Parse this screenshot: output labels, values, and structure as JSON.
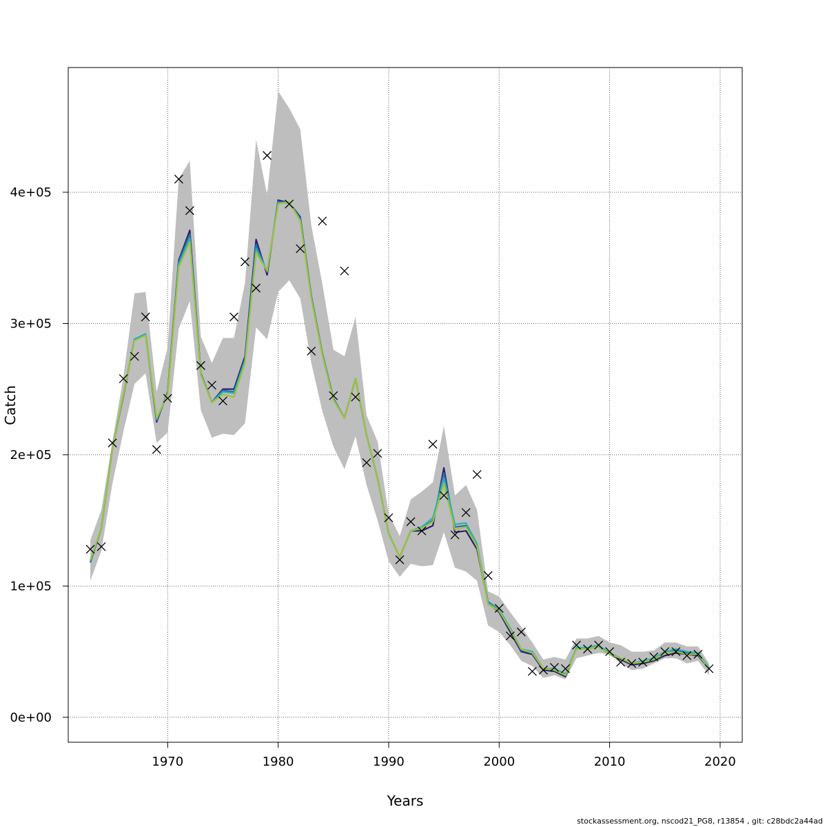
{
  "chart_data": {
    "type": "line",
    "xlabel": "Years",
    "ylabel": "Catch",
    "xlim": [
      1961,
      2022
    ],
    "ylim": [
      -19000,
      495000
    ],
    "x_ticks": [
      1970,
      1980,
      1990,
      2000,
      2010,
      2020
    ],
    "x_tick_labels": [
      "1970",
      "1980",
      "1990",
      "2000",
      "2010",
      "2020"
    ],
    "y_ticks": [
      0,
      100000,
      200000,
      300000,
      400000
    ],
    "y_tick_labels": [
      "0e+00",
      "1e+05",
      "2e+05",
      "3e+05",
      "4e+05"
    ],
    "grid": true,
    "x": [
      1963,
      1964,
      1965,
      1966,
      1967,
      1968,
      1969,
      1970,
      1971,
      1972,
      1973,
      1974,
      1975,
      1976,
      1977,
      1978,
      1979,
      1980,
      1981,
      1982,
      1983,
      1984,
      1985,
      1986,
      1987,
      1988,
      1989,
      1990,
      1991,
      1992,
      1993,
      1994,
      1995,
      1996,
      1997,
      1998,
      1999,
      2000,
      2001,
      2002,
      2003,
      2004,
      2005,
      2006,
      2007,
      2008,
      2009,
      2010,
      2011,
      2012,
      2013,
      2014,
      2015,
      2016,
      2017,
      2018,
      2019
    ],
    "band_upper": [
      135000,
      158000,
      210000,
      260000,
      323000,
      324000,
      248000,
      282000,
      410000,
      424000,
      290000,
      270000,
      289000,
      289000,
      331000,
      440000,
      398000,
      477000,
      464000,
      448000,
      375000,
      330000,
      280000,
      275000,
      305000,
      230000,
      210000,
      155000,
      138000,
      166000,
      172000,
      179000,
      222000,
      169000,
      177000,
      158000,
      96000,
      92000,
      80000,
      69000,
      57000,
      44000,
      46000,
      44000,
      60000,
      60000,
      62000,
      57000,
      55000,
      50000,
      50000,
      51000,
      57000,
      57000,
      54000,
      54000,
      41000
    ],
    "band_lower": [
      104000,
      127000,
      178000,
      218000,
      254000,
      262000,
      209000,
      217000,
      296000,
      317000,
      234000,
      213000,
      216000,
      215000,
      224000,
      297000,
      288000,
      324000,
      333000,
      319000,
      270000,
      233000,
      206000,
      189000,
      214000,
      177000,
      150000,
      119000,
      107000,
      117000,
      115000,
      116000,
      141000,
      114000,
      111000,
      104000,
      70000,
      65000,
      55000,
      43000,
      39000,
      30000,
      32000,
      29000,
      45000,
      47000,
      49000,
      48000,
      41000,
      36000,
      37000,
      41000,
      45000,
      45000,
      41000,
      43000,
      32000
    ],
    "observed": [
      128000,
      130000,
      209000,
      258000,
      275000,
      305000,
      204000,
      243000,
      410000,
      386000,
      268000,
      253000,
      241000,
      305000,
      347000,
      327000,
      428000,
      null,
      391000,
      357000,
      279000,
      378000,
      245000,
      340000,
      244000,
      194000,
      201000,
      152000,
      120000,
      149000,
      142000,
      208000,
      169000,
      139000,
      156000,
      185000,
      108000,
      83000,
      62000,
      65000,
      35000,
      36000,
      38000,
      37000,
      55000,
      52000,
      55000,
      50000,
      42000,
      41000,
      42000,
      46000,
      50000,
      50000,
      47000,
      48000,
      37000
    ],
    "series": [
      {
        "color": "#2d1e6e",
        "values": [
          118000,
          144000,
          205000,
          245000,
          288000,
          292000,
          225000,
          248000,
          348000,
          371000,
          262000,
          240000,
          250000,
          250000,
          275000,
          364000,
          337000,
          394000,
          392000,
          381000,
          321000,
          277000,
          243000,
          228000,
          258000,
          215000,
          182000,
          140000,
          122000,
          142000,
          142000,
          146000,
          190000,
          141000,
          142000,
          128000,
          87000,
          80000,
          65000,
          50000,
          48000,
          36000,
          35000,
          31000,
          53000,
          52000,
          54000,
          48000,
          44000,
          40000,
          41000,
          43000,
          47000,
          49000,
          48000,
          47000,
          37000
        ]
      },
      {
        "color": "#2b6fa8",
        "values": [
          118000,
          144000,
          205000,
          246000,
          288000,
          292000,
          226000,
          247000,
          347000,
          368000,
          262000,
          240000,
          249000,
          248000,
          273000,
          360000,
          339000,
          393000,
          392000,
          380000,
          321000,
          277000,
          243000,
          228000,
          258000,
          215000,
          182000,
          140000,
          122000,
          142000,
          144000,
          150000,
          186000,
          145000,
          146000,
          131000,
          88000,
          82000,
          67000,
          51000,
          49000,
          37000,
          36000,
          32000,
          53000,
          52000,
          54000,
          48000,
          45000,
          41000,
          42000,
          45000,
          49000,
          51000,
          49000,
          48000,
          38000
        ]
      },
      {
        "color": "#29b0b8",
        "values": [
          119000,
          144000,
          205000,
          246000,
          288000,
          292000,
          227000,
          247000,
          345000,
          365000,
          261000,
          240000,
          248000,
          247000,
          272000,
          357000,
          340000,
          392000,
          392000,
          379000,
          320000,
          276000,
          242000,
          228000,
          258000,
          215000,
          182000,
          140000,
          122000,
          142000,
          145000,
          152000,
          182000,
          147000,
          148000,
          132000,
          87000,
          82000,
          68000,
          52000,
          50000,
          37000,
          37000,
          33000,
          53000,
          53000,
          55000,
          49000,
          45000,
          41000,
          43000,
          45000,
          50000,
          52000,
          50000,
          49000,
          38000
        ]
      },
      {
        "color": "#9ec33a",
        "values": [
          120000,
          144000,
          205000,
          246000,
          287000,
          291000,
          228000,
          246000,
          343000,
          362000,
          261000,
          240000,
          246000,
          244000,
          270000,
          354000,
          340000,
          391000,
          393000,
          378000,
          319000,
          276000,
          242000,
          228000,
          258000,
          215000,
          182000,
          140000,
          122000,
          142000,
          144000,
          149000,
          178000,
          143000,
          145000,
          130000,
          86000,
          81000,
          67000,
          52000,
          49000,
          37000,
          36000,
          32000,
          52000,
          52000,
          54000,
          48000,
          45000,
          41000,
          42000,
          44000,
          49000,
          50000,
          48000,
          48000,
          37000
        ]
      }
    ],
    "band_color": "#bebebe"
  },
  "footer": {
    "text": "stockassessment.org, nscod21_PG8, r13854 , git: c28bdc2a44ad"
  }
}
